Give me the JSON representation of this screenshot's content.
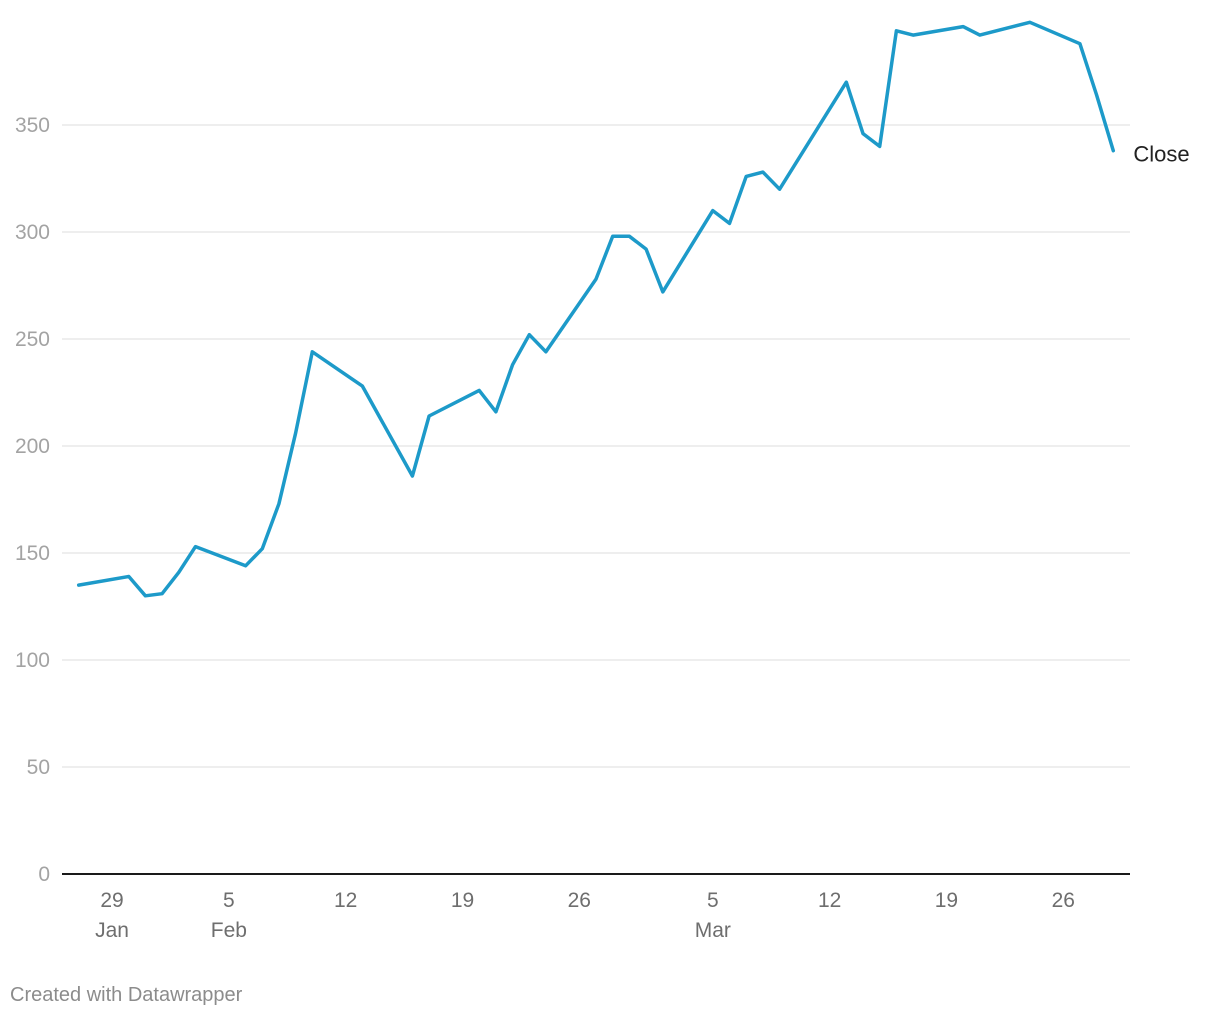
{
  "chart_data": {
    "type": "line",
    "title": "",
    "xlabel": "",
    "ylabel": "",
    "ylim": [
      0,
      400
    ],
    "y_ticks": [
      0,
      50,
      100,
      150,
      200,
      250,
      300,
      350
    ],
    "grid": true,
    "x_range": [
      "2024-01-26",
      "2024-03-30"
    ],
    "x_ticks": [
      {
        "date": "2024-01-29",
        "label": "29",
        "sublabel": "Jan"
      },
      {
        "date": "2024-02-05",
        "label": "5",
        "sublabel": "Feb"
      },
      {
        "date": "2024-02-12",
        "label": "12",
        "sublabel": ""
      },
      {
        "date": "2024-02-19",
        "label": "19",
        "sublabel": ""
      },
      {
        "date": "2024-02-26",
        "label": "26",
        "sublabel": ""
      },
      {
        "date": "2024-03-05",
        "label": "5",
        "sublabel": "Mar"
      },
      {
        "date": "2024-03-12",
        "label": "12",
        "sublabel": ""
      },
      {
        "date": "2024-03-19",
        "label": "19",
        "sublabel": ""
      },
      {
        "date": "2024-03-26",
        "label": "26",
        "sublabel": ""
      }
    ],
    "series": [
      {
        "name": "Close",
        "color": "#1d9ac9",
        "points": [
          [
            "2024-01-27",
            135
          ],
          [
            "2024-01-30",
            139
          ],
          [
            "2024-01-31",
            130
          ],
          [
            "2024-02-01",
            131
          ],
          [
            "2024-02-02",
            141
          ],
          [
            "2024-02-03",
            153
          ],
          [
            "2024-02-06",
            144
          ],
          [
            "2024-02-07",
            152
          ],
          [
            "2024-02-08",
            173
          ],
          [
            "2024-02-09",
            206
          ],
          [
            "2024-02-10",
            244
          ],
          [
            "2024-02-13",
            228
          ],
          [
            "2024-02-16",
            186
          ],
          [
            "2024-02-17",
            214
          ],
          [
            "2024-02-20",
            226
          ],
          [
            "2024-02-21",
            216
          ],
          [
            "2024-02-22",
            238
          ],
          [
            "2024-02-23",
            252
          ],
          [
            "2024-02-24",
            244
          ],
          [
            "2024-02-27",
            278
          ],
          [
            "2024-02-28",
            298
          ],
          [
            "2024-02-29",
            298
          ],
          [
            "2024-03-01",
            292
          ],
          [
            "2024-03-02",
            272
          ],
          [
            "2024-03-05",
            310
          ],
          [
            "2024-03-06",
            304
          ],
          [
            "2024-03-07",
            326
          ],
          [
            "2024-03-08",
            328
          ],
          [
            "2024-03-09",
            320
          ],
          [
            "2024-03-13",
            370
          ],
          [
            "2024-03-14",
            346
          ],
          [
            "2024-03-15",
            340
          ],
          [
            "2024-03-16",
            394
          ],
          [
            "2024-03-17",
            392
          ],
          [
            "2024-03-20",
            396
          ],
          [
            "2024-03-21",
            392
          ],
          [
            "2024-03-24",
            398
          ],
          [
            "2024-03-27",
            388
          ],
          [
            "2024-03-28",
            364
          ],
          [
            "2024-03-29",
            338
          ]
        ]
      }
    ]
  },
  "footer": {
    "credit": "Created with Datawrapper"
  }
}
